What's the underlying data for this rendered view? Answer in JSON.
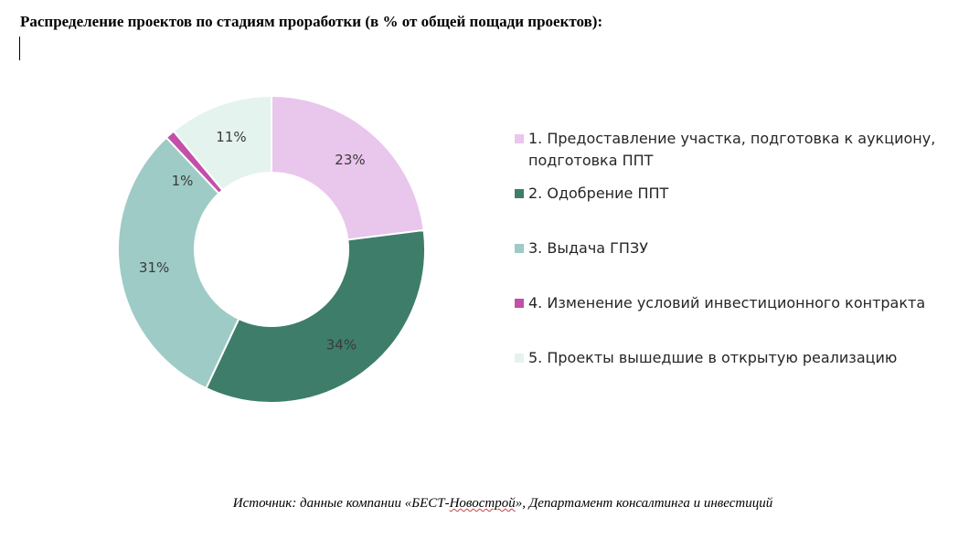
{
  "document": {
    "title": "Распределение проектов по стадиям проработки (в % от общей пощади проектов):",
    "source_prefix": "Источник: данные компании «БЕСТ-",
    "source_misspelled": "Новострой",
    "source_suffix": "», Департамент консалтинга и инвестиций"
  },
  "chart_data": {
    "type": "pie",
    "donut": true,
    "start_angle_deg": 0,
    "direction": "clockwise",
    "legend_position": "right",
    "slices": [
      {
        "label": "1. Предоставление участка, подготовка к аукциону, подготовка ППТ",
        "value": 23,
        "data_label": "23%",
        "color": "#E9C6EB"
      },
      {
        "label": "2. Одобрение ППТ",
        "value": 34,
        "data_label": "34%",
        "color": "#3E7D69"
      },
      {
        "label": "3. Выдача ГПЗУ",
        "value": 31,
        "data_label": "31%",
        "color": "#9ECBC6"
      },
      {
        "label": "4. Изменение условий инвестиционного контракта",
        "value": 1,
        "data_label": "1%",
        "color": "#C24FA8"
      },
      {
        "label": "5. Проекты вышедшие  в открытую реализацию",
        "value": 11,
        "data_label": "11%",
        "color": "#E4F3EE"
      }
    ]
  }
}
